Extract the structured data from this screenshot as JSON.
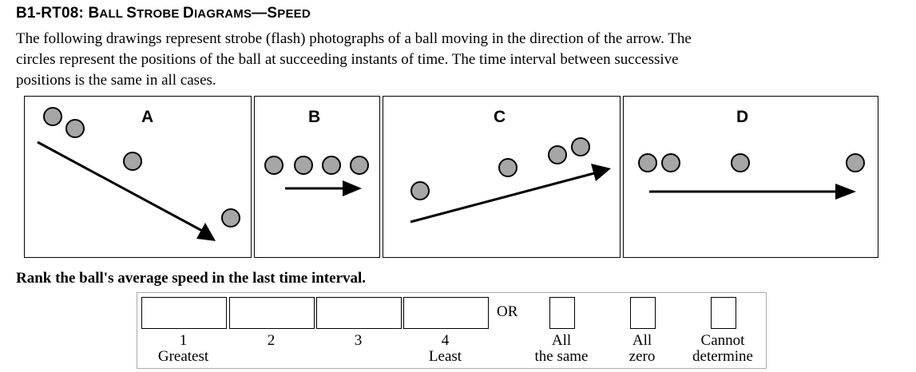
{
  "header": {
    "code": "B1-RT08: ",
    "title_big_1": "B",
    "title_small_1": "ALL ",
    "title_big_2": "S",
    "title_small_2": "TROBE ",
    "title_big_3": "D",
    "title_small_3": "IAGRAMS",
    "title_dash": "—",
    "title_big_4": "S",
    "title_small_4": "PEED"
  },
  "intro": {
    "line1": "The following drawings represent strobe (flash) photographs of a ball moving in the direction of the arrow. The",
    "line2": "circles represent the positions of the ball at succeeding instants of time. The time interval between successive",
    "line3": "positions is the same in all cases."
  },
  "panels": [
    {
      "label": "A"
    },
    {
      "label": "B"
    },
    {
      "label": "C"
    },
    {
      "label": "D"
    }
  ],
  "colors": {
    "ball_fill": "#a6a6a6",
    "stroke": "#000000"
  },
  "question": "Rank the ball's average speed in the last time interval.",
  "ranking": {
    "slots": [
      {
        "number": "1",
        "caption": "Greatest",
        "value": ""
      },
      {
        "number": "2",
        "caption": "",
        "value": ""
      },
      {
        "number": "3",
        "caption": "",
        "value": ""
      },
      {
        "number": "4",
        "caption": "Least",
        "value": ""
      }
    ],
    "or_label": "OR",
    "options": [
      {
        "line1": "All",
        "line2": "the same"
      },
      {
        "line1": "All",
        "line2": "zero"
      },
      {
        "line1": "Cannot",
        "line2": "determine"
      }
    ]
  }
}
